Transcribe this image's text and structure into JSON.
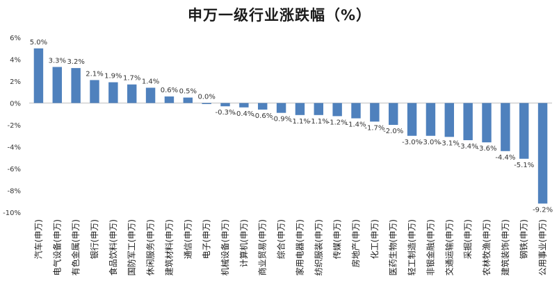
{
  "chart_data": {
    "type": "bar",
    "title": "申万一级行业涨跌幅（%）",
    "xlabel": "",
    "ylabel": "",
    "ylim": [
      -10,
      6
    ],
    "yticks": [
      "6%",
      "4%",
      "2%",
      "0%",
      "-2%",
      "-4%",
      "-6%",
      "-8%",
      "-10%"
    ],
    "ytick_values": [
      6,
      4,
      2,
      0,
      -2,
      -4,
      -6,
      -8,
      -10
    ],
    "bar_color": "#4f81bd",
    "grid": false,
    "legend": "none",
    "categories": [
      "汽车(申万)",
      "电气设备(申万)",
      "有色金属(申万)",
      "银行(申万)",
      "食品饮料(申万)",
      "国防军工(申万)",
      "休闲服务(申万)",
      "建筑材料(申万)",
      "通信(申万)",
      "电子(申万)",
      "机械设备(申万)",
      "计算机(申万)",
      "商业贸易(申万)",
      "综合(申万)",
      "家用电器(申万)",
      "纺织服装(申万)",
      "传媒(申万)",
      "房地产(申万)",
      "化工(申万)",
      "医药生物(申万)",
      "轻工制造(申万)",
      "非银金融(申万)",
      "交通运输(申万)",
      "采掘(申万)",
      "农林牧渔(申万)",
      "建筑装饰(申万)",
      "钢铁(申万)",
      "公用事业(申万)"
    ],
    "values": [
      5.0,
      3.3,
      3.2,
      2.1,
      1.9,
      1.7,
      1.4,
      0.6,
      0.5,
      0.0,
      -0.3,
      -0.4,
      -0.6,
      -0.9,
      -1.1,
      -1.1,
      -1.2,
      -1.4,
      -1.7,
      -2.0,
      -3.0,
      -3.0,
      -3.1,
      -3.4,
      -3.6,
      -4.4,
      -5.1,
      -9.2
    ],
    "data_labels": [
      "5.0%",
      "3.3%",
      "3.2%",
      "2.1%",
      "1.9%",
      "1.7%",
      "1.4%",
      "0.6%",
      "0.5%",
      "0.0%",
      "-0.3%",
      "-0.4%",
      "-0.6%",
      "-0.9%",
      "-1.1%",
      "-1.1%",
      "-1.2%",
      "-1.4%",
      "-1.7%",
      "-2.0%",
      "-3.0%",
      "-3.0%",
      "-3.1%",
      "-3.4%",
      "-3.6%",
      "-4.4%",
      "-5.1%",
      "-9.2%"
    ]
  }
}
